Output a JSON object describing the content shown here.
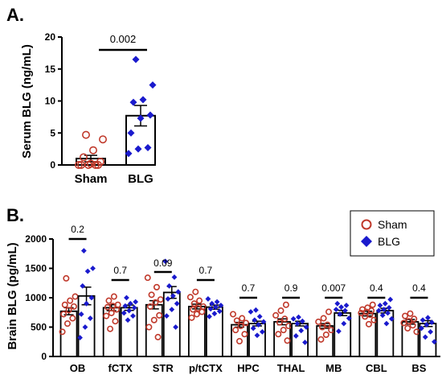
{
  "panels": {
    "a": {
      "label": "A."
    },
    "b": {
      "label": "B."
    }
  },
  "colors": {
    "sham": "#c0392b",
    "blg": "#1a1acd",
    "axis": "#000000"
  },
  "chart_data": [
    {
      "type": "bar",
      "ylabel": "Serum BLG (ng/mL)",
      "ylim": [
        0,
        20
      ],
      "yticks": [
        0,
        5,
        10,
        15,
        20
      ],
      "categories": [
        "Sham",
        "BLG"
      ],
      "values": [
        1.0,
        7.7
      ],
      "errors": [
        0.5,
        1.6
      ],
      "points": [
        [
          0,
          0,
          0,
          0,
          0.2,
          0.5,
          1.2,
          2.3,
          4.0,
          4.7,
          0
        ],
        [
          1.8,
          2.5,
          2.7,
          5.0,
          7.3,
          7.8,
          9.8,
          10.2,
          12.5,
          16.5
        ]
      ],
      "comparisons": [
        {
          "label": "0.002"
        }
      ],
      "grid": false
    },
    {
      "type": "bar",
      "ylabel": "Brain BLG (pg/mL)",
      "ylim": [
        0,
        2000
      ],
      "yticks": [
        0,
        500,
        1000,
        1500,
        2000
      ],
      "categories": [
        "OB",
        "fCTX",
        "STR",
        "p/tCTX",
        "HPC",
        "THAL",
        "MB",
        "CBL",
        "BS"
      ],
      "series": [
        {
          "name": "Sham",
          "values": [
            770,
            830,
            880,
            850,
            540,
            590,
            520,
            730,
            590
          ],
          "errors": [
            60,
            50,
            70,
            40,
            40,
            50,
            40,
            40,
            40
          ]
        },
        {
          "name": "BLG",
          "values": [
            1030,
            830,
            1090,
            840,
            560,
            560,
            740,
            780,
            560
          ],
          "errors": [
            150,
            45,
            100,
            35,
            40,
            40,
            45,
            40,
            50
          ]
        }
      ],
      "points": [
        [
          [
            420,
            560,
            650,
            720,
            790,
            850,
            880,
            950,
            1020,
            1330
          ],
          [
            470,
            600,
            690,
            740,
            800,
            840,
            860,
            880,
            950,
            1020
          ],
          [
            330,
            500,
            620,
            700,
            850,
            920,
            970,
            1050,
            1180,
            1340
          ],
          [
            660,
            720,
            760,
            800,
            820,
            850,
            900,
            950,
            1010,
            1100
          ],
          [
            260,
            380,
            450,
            520,
            570,
            610,
            650,
            720
          ],
          [
            270,
            380,
            450,
            520,
            580,
            640,
            700,
            780,
            880
          ],
          [
            290,
            370,
            450,
            500,
            540,
            590,
            650,
            760
          ],
          [
            550,
            620,
            680,
            710,
            740,
            760,
            780,
            800,
            830,
            880
          ],
          [
            420,
            480,
            530,
            570,
            600,
            640,
            690,
            730
          ]
        ],
        [
          [
            320,
            500,
            650,
            720,
            900,
            1000,
            1200,
            1450,
            1500,
            1800
          ],
          [
            620,
            690,
            740,
            780,
            830,
            860,
            900,
            930,
            1000
          ],
          [
            500,
            690,
            800,
            900,
            980,
            1030,
            1100,
            1200,
            1350,
            1620
          ],
          [
            680,
            730,
            770,
            810,
            840,
            870,
            900,
            930,
            980
          ],
          [
            360,
            420,
            480,
            540,
            590,
            620,
            680,
            760,
            790
          ],
          [
            240,
            350,
            440,
            500,
            560,
            600,
            640,
            670
          ],
          [
            430,
            560,
            650,
            720,
            780,
            800,
            840,
            870,
            900
          ],
          [
            560,
            640,
            700,
            740,
            780,
            800,
            830,
            870,
            900,
            970
          ],
          [
            250,
            330,
            420,
            480,
            540,
            580,
            620,
            660
          ]
        ]
      ],
      "comparisons": [
        "0.2",
        "0.7",
        "0.09",
        "0.7",
        "0.7",
        "0.9",
        "0.007",
        "0.4",
        "0.4"
      ],
      "legend": {
        "placement": "top-right",
        "entries": [
          "Sham",
          "BLG"
        ]
      },
      "grid": false
    }
  ]
}
